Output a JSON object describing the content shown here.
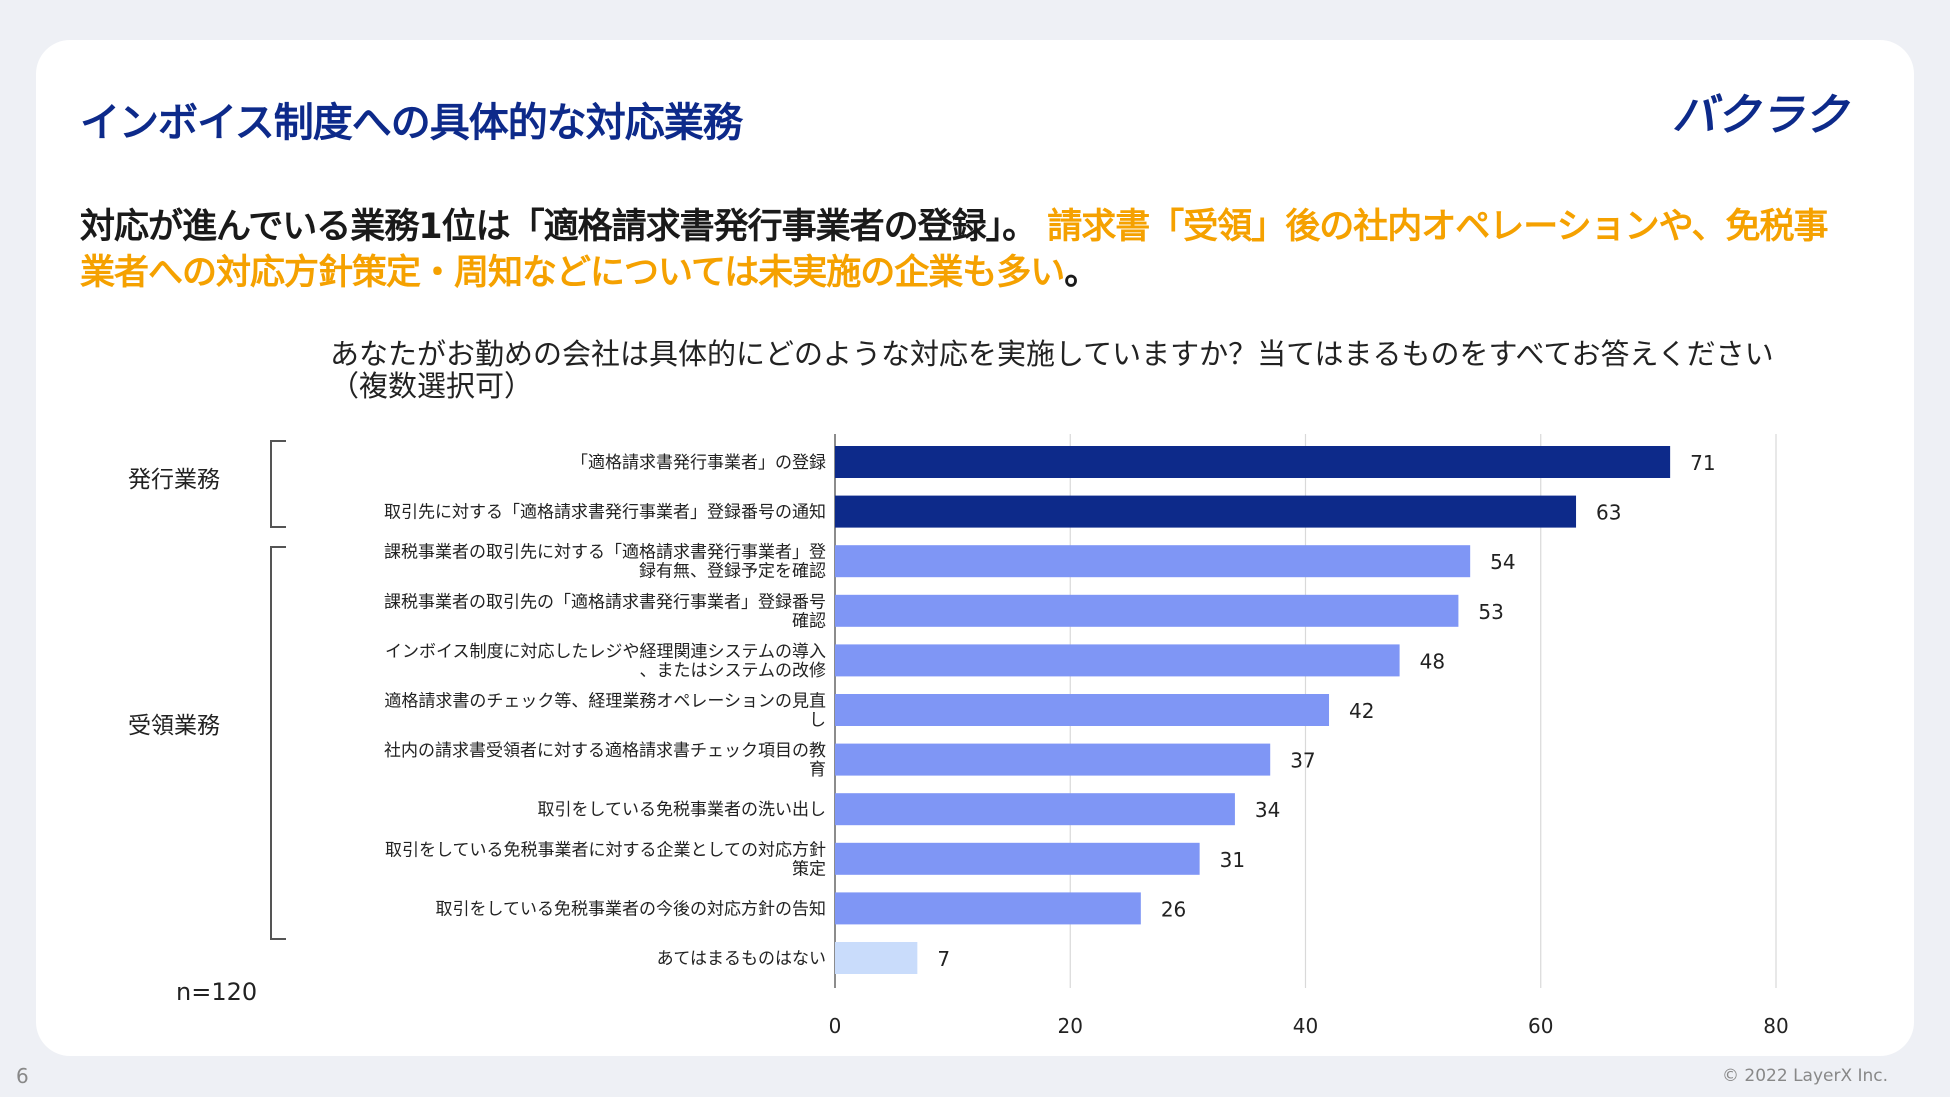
{
  "header": {
    "title": "インボイス制度への具体的な対応業務",
    "logo_text": "バクラク"
  },
  "lead": {
    "part1": "対応が進んでいる業務1位は「適格請求書発行事業者の登録」。",
    "highlight": "請求書「受領」後の社内オペレーションや、免税事業者への対応方針策定・周知などについては未実施の企業も多い",
    "part2": "。"
  },
  "chart_data": {
    "type": "bar",
    "orientation": "horizontal",
    "title": "あなたがお勤めの会社は具体的にどのような対応を実施していますか？当てはまるものをすべてお答えください（複数選択可）",
    "categories": [
      [
        "「適格請求書発行事業者」の登録"
      ],
      [
        "取引先に対する「適格請求書発行事業者」登録番号の通知"
      ],
      [
        "課税事業者の取引先に対する「適格請求書発行事業者」登",
        "録有無、登録予定を確認"
      ],
      [
        "課税事業者の取引先の「適格請求書発行事業者」登録番号",
        "確認"
      ],
      [
        "インボイス制度に対応したレジや経理関連システムの導入",
        "、またはシステムの改修"
      ],
      [
        "適格請求書のチェック等、経理業務オペレーションの見直",
        "し"
      ],
      [
        "社内の請求書受領者に対する適格請求書チェック項目の教",
        "育"
      ],
      [
        "取引をしている免税事業者の洗い出し"
      ],
      [
        "取引をしている免税事業者に対する企業としての対応方針",
        "策定"
      ],
      [
        "取引をしている免税事業者の今後の対応方針の告知"
      ],
      [
        "あてはまるものはない"
      ]
    ],
    "values": [
      71,
      63,
      54,
      53,
      48,
      42,
      37,
      34,
      31,
      26,
      7
    ],
    "groups": [
      {
        "name": "発行業務",
        "from": 0,
        "to": 1,
        "color": "#0d2a8a"
      },
      {
        "name": "受領業務",
        "from": 2,
        "to": 9,
        "color": "#7f96f5"
      },
      {
        "name": "",
        "from": 10,
        "to": 10,
        "color": "#c9dcfb"
      }
    ],
    "xlim": [
      0,
      80
    ],
    "xticks": [
      0,
      20,
      40,
      60,
      80
    ],
    "grid": true,
    "sample_size": "n=120"
  },
  "footer": {
    "page": "6",
    "copyright": "© 2022 LayerX Inc."
  }
}
